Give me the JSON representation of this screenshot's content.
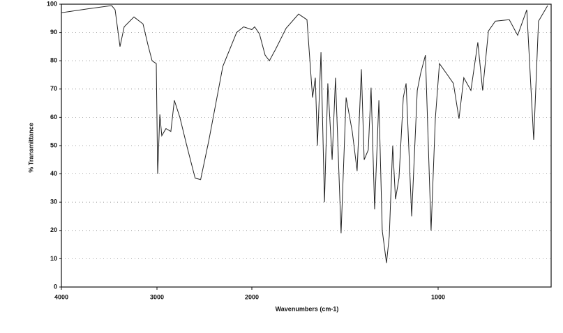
{
  "chart_data": {
    "type": "line",
    "xlabel": "Wavenumbers (cm-1)",
    "ylabel": "% Transmittance",
    "xlim": [
      4000,
      400
    ],
    "ylim": [
      0,
      100
    ],
    "xticks": [
      4000,
      3000,
      2000,
      1000
    ],
    "yticks": [
      0,
      10,
      20,
      30,
      40,
      50,
      60,
      70,
      80,
      90,
      100
    ],
    "grid": true,
    "series": [
      {
        "color": "#222222",
        "x": [
          4000,
          3693,
          3474,
          3438,
          3387,
          3343,
          3241,
          3146,
          3095,
          3051,
          3007,
          2993,
          2970,
          2949,
          2905,
          2854,
          2817,
          2759,
          2686,
          2598,
          2540,
          2452,
          2306,
          2160,
          2087,
          2000,
          1985,
          1959,
          1929,
          1906,
          1873,
          1816,
          1749,
          1704,
          1674,
          1659,
          1648,
          1629,
          1610,
          1592,
          1569,
          1551,
          1521,
          1494,
          1461,
          1435,
          1412,
          1397,
          1375,
          1360,
          1341,
          1318,
          1300,
          1277,
          1262,
          1244,
          1229,
          1210,
          1187,
          1172,
          1142,
          1112,
          1094,
          1068,
          1038,
          1015,
          993,
          955,
          918,
          888,
          862,
          824,
          787,
          761,
          730,
          693,
          618,
          573,
          524,
          487,
          461,
          412
        ],
        "values": [
          97,
          98.5,
          99.5,
          98,
          85,
          92,
          95.5,
          93,
          85.7,
          80,
          79,
          40,
          61,
          53.5,
          56,
          55,
          66,
          60,
          50,
          38.5,
          38,
          52,
          78,
          90,
          92,
          91,
          92,
          89.5,
          82,
          80,
          84,
          91.5,
          96.5,
          94.5,
          67,
          74,
          50,
          83,
          30,
          72,
          45,
          74,
          19,
          67,
          55,
          41,
          77,
          45,
          48.5,
          70.5,
          27.5,
          66,
          20,
          8.5,
          18,
          50,
          31,
          38.5,
          67,
          72,
          25,
          69.5,
          75.5,
          82,
          20,
          59.5,
          79,
          75.5,
          72,
          59.5,
          74,
          69.5,
          86.5,
          69.5,
          90.5,
          94,
          94.5,
          89,
          98,
          52,
          94,
          99.5
        ]
      }
    ]
  }
}
